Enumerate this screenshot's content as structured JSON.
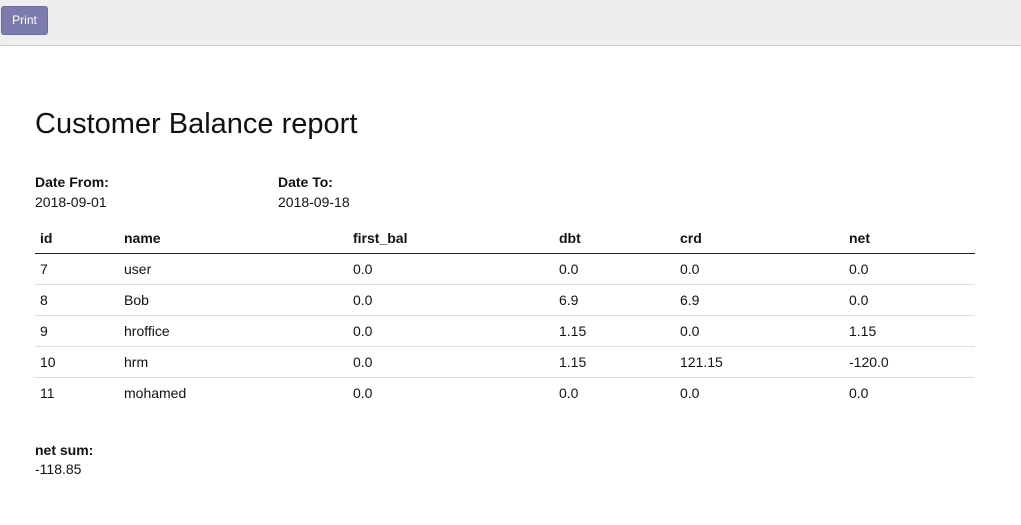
{
  "toolbar": {
    "print_label": "Print"
  },
  "report": {
    "title": "Customer Balance report",
    "date_from_label": "Date From:",
    "date_from_value": "2018-09-01",
    "date_to_label": "Date To:",
    "date_to_value": "2018-09-18",
    "columns": [
      "id",
      "name",
      "first_bal",
      "dbt",
      "crd",
      "net"
    ],
    "rows": [
      [
        "7",
        "user",
        "0.0",
        "0.0",
        "0.0",
        "0.0"
      ],
      [
        "8",
        "Bob",
        "0.0",
        "6.9",
        "6.9",
        "0.0"
      ],
      [
        "9",
        "hroffice",
        "0.0",
        "1.15",
        "0.0",
        "1.15"
      ],
      [
        "10",
        "hrm",
        "0.0",
        "1.15",
        "121.15",
        "-120.0"
      ],
      [
        "11",
        "mohamed",
        "0.0",
        "0.0",
        "0.0",
        "0.0"
      ]
    ],
    "net_sum_label": "net sum:",
    "net_sum_value": "-118.85"
  },
  "colors": {
    "print_button_bg": "#7c7bad",
    "toolbar_bg": "#efeeef"
  }
}
